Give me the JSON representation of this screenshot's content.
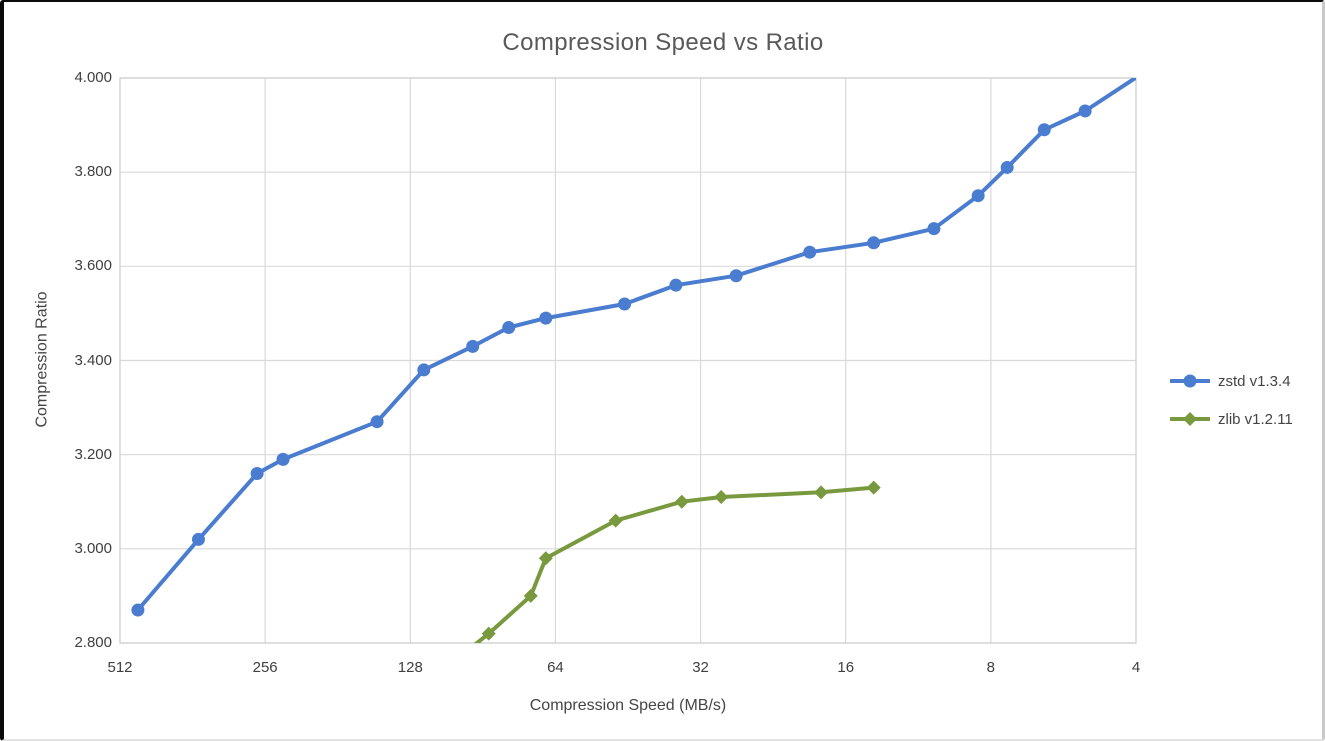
{
  "window": {
    "background": "#FFFFFF",
    "border_color": "#0A0A0A"
  },
  "chart_data": {
    "type": "line",
    "title": "Compression Speed vs Ratio",
    "xlabel": "Compression Speed (MB/s)",
    "ylabel": "Compression Ratio",
    "x_scale": "log2_reversed",
    "x_ticks": [
      "512",
      "256",
      "128",
      "64",
      "32",
      "16",
      "8",
      "4"
    ],
    "y_ticks": [
      "4.000",
      "3.800",
      "3.600",
      "3.400",
      "3.200",
      "3.000",
      "2.800"
    ],
    "x_range": [
      512,
      4
    ],
    "y_range": [
      2.8,
      4.0
    ],
    "grid": true,
    "legend_position": "center-right",
    "colors": {
      "gridline": "#D9D9D9",
      "plot_border": "#CFCFCF",
      "title_text": "#595959",
      "tick_text": "#404040"
    },
    "series": [
      {
        "name": "zstd v1.3.4",
        "color": "#4A7CCF",
        "marker": "circle",
        "points": [
          [
            470,
            2.87
          ],
          [
            352,
            3.02
          ],
          [
            266,
            3.16
          ],
          [
            235,
            3.19
          ],
          [
            150,
            3.27
          ],
          [
            120,
            3.38
          ],
          [
            95,
            3.43
          ],
          [
            80,
            3.47
          ],
          [
            67,
            3.49
          ],
          [
            46,
            3.52
          ],
          [
            36,
            3.56
          ],
          [
            27,
            3.58
          ],
          [
            19,
            3.63
          ],
          [
            14,
            3.65
          ],
          [
            10.5,
            3.68
          ],
          [
            8.5,
            3.75
          ],
          [
            7.4,
            3.81
          ],
          [
            6.2,
            3.89
          ],
          [
            5.1,
            3.93
          ],
          [
            3.5,
            4.04
          ]
        ]
      },
      {
        "name": "zlib v1.2.11",
        "color": "#79993E",
        "marker": "diamond",
        "points": [
          [
            110,
            2.74
          ],
          [
            88,
            2.82
          ],
          [
            72,
            2.9
          ],
          [
            67,
            2.98
          ],
          [
            48,
            3.06
          ],
          [
            35,
            3.1
          ],
          [
            29,
            3.11
          ],
          [
            18,
            3.12
          ],
          [
            14,
            3.13
          ]
        ]
      }
    ]
  }
}
